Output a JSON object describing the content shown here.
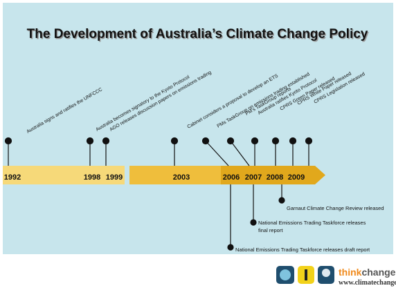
{
  "title": "The Development of Australia’s Climate Change Policy",
  "years": [
    "1992",
    "1998",
    "1999",
    "2003",
    "2006",
    "2007",
    "2008",
    "2009"
  ],
  "above_events": [
    "Australia signs and ratifies the UNFCCC",
    "Australia becomes signatory to the Kyoto Protocol",
    "AGO releases discussion papers on emissions trading",
    "Cabinet considers a proposal to develop an ETS",
    "PMs TaskGroup on emissions trading established",
    "PM’s TaskGroup reports",
    "Australia ratifies Kyoto Protocol",
    "CPRS Green Paper released",
    "CPRS White Paper released",
    "CPRS Legislation released"
  ],
  "below_events": [
    "Garnaut Climate Change Review  released",
    "National Emissions Trading Taskforce releases",
    "final report",
    "National Emissions Trading Taskforce releases draft report"
  ],
  "footer": {
    "brand_think": "think",
    "brand_change": "change",
    "url": "www.climatechange.gov.au"
  }
}
